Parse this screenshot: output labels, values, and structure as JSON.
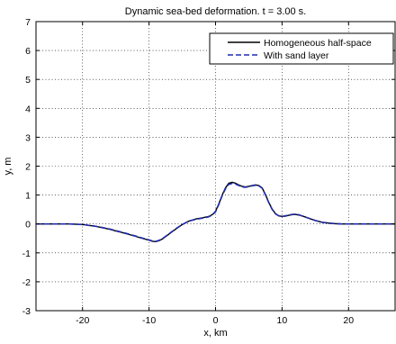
{
  "chart_data": {
    "type": "line",
    "title": "Dynamic sea-bed deformation. t = 3.00 s.",
    "xlabel": "x, km",
    "ylabel": "y, m",
    "xlim": [
      -27,
      27
    ],
    "ylim": [
      -3,
      7
    ],
    "xticks": [
      -20,
      -10,
      0,
      10,
      20
    ],
    "yticks": [
      -3,
      -2,
      -1,
      0,
      1,
      2,
      3,
      4,
      5,
      6,
      7
    ],
    "grid": true,
    "legend_position": "top-right",
    "series": [
      {
        "name": "Homogeneous half-space",
        "style": "solid",
        "color": "#000000",
        "x": [
          -27,
          -22,
          -20,
          -18,
          -16,
          -14,
          -12,
          -11,
          -10,
          -9.5,
          -9,
          -8.5,
          -8,
          -7,
          -6,
          -5,
          -4,
          -3,
          -2,
          -1,
          -0.5,
          0,
          0.5,
          1,
          1.5,
          2,
          2.5,
          3,
          3.5,
          4,
          4.5,
          5,
          5.5,
          6,
          6.5,
          7,
          7.5,
          8,
          8.5,
          9,
          9.5,
          10,
          10.5,
          11,
          11.5,
          12,
          12.5,
          13,
          14,
          15,
          16,
          17,
          18,
          19,
          20,
          22,
          27
        ],
        "y": [
          0,
          0,
          -0.02,
          -0.08,
          -0.18,
          -0.3,
          -0.43,
          -0.5,
          -0.56,
          -0.6,
          -0.61,
          -0.58,
          -0.52,
          -0.35,
          -0.18,
          -0.02,
          0.1,
          0.17,
          0.21,
          0.26,
          0.32,
          0.44,
          0.7,
          1.0,
          1.25,
          1.41,
          1.44,
          1.41,
          1.35,
          1.3,
          1.28,
          1.3,
          1.33,
          1.35,
          1.33,
          1.25,
          1.02,
          0.75,
          0.52,
          0.36,
          0.28,
          0.26,
          0.27,
          0.3,
          0.32,
          0.33,
          0.31,
          0.28,
          0.2,
          0.12,
          0.06,
          0.03,
          0.01,
          0.0,
          0.0,
          0.0,
          0.0
        ]
      },
      {
        "name": "With sand layer",
        "style": "dashed",
        "color": "#1f2bb4",
        "x": [
          -27,
          -22,
          -20,
          -18,
          -16,
          -14,
          -12,
          -11,
          -10,
          -9.5,
          -9,
          -8.5,
          -8,
          -7,
          -6,
          -5,
          -4,
          -3,
          -2,
          -1,
          -0.5,
          0,
          0.5,
          1,
          1.5,
          2,
          2.5,
          3,
          3.5,
          4,
          4.5,
          5,
          5.5,
          6,
          6.5,
          7,
          7.5,
          8,
          8.5,
          9,
          9.5,
          10,
          10.5,
          11,
          11.5,
          12,
          12.5,
          13,
          14,
          15,
          16,
          17,
          18,
          19,
          20,
          22,
          27
        ],
        "y": [
          0,
          0,
          -0.02,
          -0.08,
          -0.17,
          -0.29,
          -0.42,
          -0.49,
          -0.55,
          -0.59,
          -0.6,
          -0.57,
          -0.51,
          -0.34,
          -0.17,
          -0.02,
          0.1,
          0.16,
          0.2,
          0.25,
          0.31,
          0.42,
          0.68,
          0.98,
          1.22,
          1.37,
          1.4,
          1.38,
          1.33,
          1.28,
          1.27,
          1.29,
          1.32,
          1.34,
          1.32,
          1.24,
          1.01,
          0.74,
          0.51,
          0.35,
          0.28,
          0.26,
          0.28,
          0.31,
          0.33,
          0.34,
          0.32,
          0.28,
          0.2,
          0.12,
          0.06,
          0.03,
          0.01,
          0.0,
          0.0,
          0.0,
          0.0
        ]
      }
    ]
  }
}
